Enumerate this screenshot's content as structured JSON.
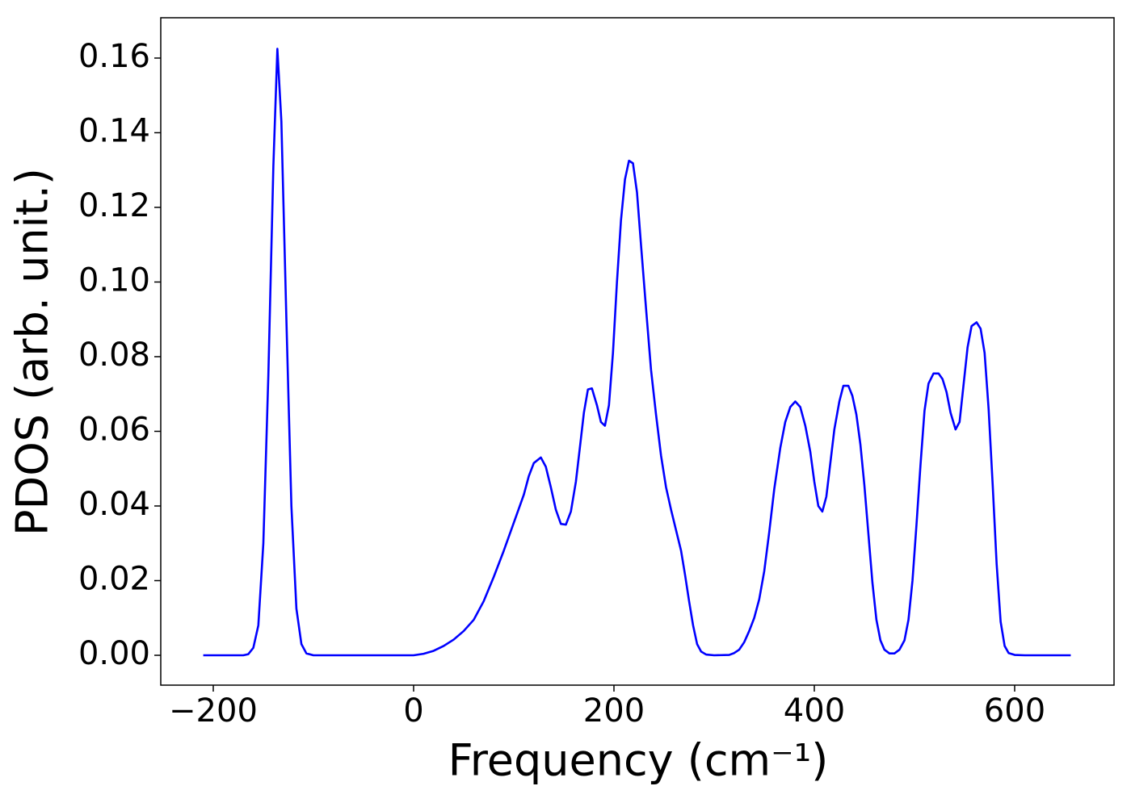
{
  "chart_data": {
    "type": "line",
    "xlabel": "Frequency (cm⁻¹)",
    "ylabel": "PDOS (arb. unit.)",
    "x": [
      -210,
      -170,
      -165,
      -160,
      -155,
      -150,
      -145,
      -140,
      -136,
      -132,
      -127,
      -122,
      -117,
      -112,
      -107,
      -100,
      0,
      10,
      20,
      30,
      40,
      50,
      60,
      70,
      80,
      90,
      100,
      110,
      115,
      120,
      127,
      132,
      137,
      142,
      147,
      152,
      157,
      162,
      167,
      170,
      174,
      178,
      183,
      187,
      191,
      195,
      199,
      203,
      207,
      211,
      215,
      219,
      223,
      227,
      232,
      237,
      242,
      247,
      252,
      257,
      262,
      267,
      271,
      275,
      279,
      283,
      287,
      292,
      300,
      315,
      320,
      325,
      330,
      335,
      340,
      345,
      350,
      355,
      360,
      366,
      371,
      376,
      381,
      386,
      391,
      396,
      400,
      404,
      408,
      412,
      416,
      420,
      425,
      429,
      434,
      438,
      442,
      446,
      450,
      454,
      458,
      462,
      466,
      470,
      475,
      480,
      485,
      490,
      494,
      498,
      502,
      506,
      510,
      514,
      519,
      524,
      528,
      532,
      536,
      541,
      545,
      549,
      553,
      557,
      562,
      566,
      570,
      574,
      578,
      582,
      586,
      590,
      594,
      600,
      610,
      656
    ],
    "series": [
      {
        "color": "#0000ff",
        "values": [
          0,
          0,
          0.0003,
          0.002,
          0.008,
          0.03,
          0.075,
          0.131,
          0.1625,
          0.143,
          0.09,
          0.04,
          0.0125,
          0.003,
          0.0005,
          0,
          0,
          0.0004,
          0.0012,
          0.0025,
          0.0042,
          0.0065,
          0.0095,
          0.0145,
          0.021,
          0.028,
          0.0355,
          0.043,
          0.048,
          0.0515,
          0.053,
          0.0505,
          0.045,
          0.039,
          0.0352,
          0.035,
          0.0385,
          0.0465,
          0.058,
          0.065,
          0.0712,
          0.0715,
          0.067,
          0.0625,
          0.0615,
          0.067,
          0.081,
          0.1,
          0.1165,
          0.1275,
          0.1325,
          0.1318,
          0.124,
          0.11,
          0.093,
          0.0765,
          0.0645,
          0.0535,
          0.045,
          0.039,
          0.0335,
          0.028,
          0.0215,
          0.0145,
          0.008,
          0.003,
          0.001,
          0.0002,
          0,
          0.0001,
          0.0006,
          0.0015,
          0.0035,
          0.0065,
          0.01,
          0.015,
          0.0225,
          0.033,
          0.0445,
          0.0555,
          0.0625,
          0.0665,
          0.068,
          0.0665,
          0.0615,
          0.0545,
          0.0465,
          0.04,
          0.0385,
          0.0425,
          0.0515,
          0.0605,
          0.068,
          0.0722,
          0.0722,
          0.0695,
          0.0645,
          0.0565,
          0.0455,
          0.0325,
          0.0195,
          0.0095,
          0.004,
          0.0015,
          0.0005,
          0.0005,
          0.0015,
          0.004,
          0.0095,
          0.02,
          0.035,
          0.051,
          0.0655,
          0.0728,
          0.0755,
          0.0755,
          0.074,
          0.0705,
          0.065,
          0.0605,
          0.0625,
          0.0725,
          0.0825,
          0.0882,
          0.0892,
          0.0875,
          0.081,
          0.066,
          0.046,
          0.0245,
          0.009,
          0.0025,
          0.0006,
          0.0001,
          0,
          0
        ]
      }
    ],
    "xlim": [
      -252.4,
      699.2
    ],
    "ylim": [
      -0.008,
      0.1708
    ],
    "xticks": [
      {
        "value": -200,
        "label": "−200"
      },
      0,
      200,
      400,
      600
    ],
    "yticks": [
      {
        "value": 0,
        "label": "0.00"
      },
      {
        "value": 0.02,
        "label": "0.02"
      },
      {
        "value": 0.04,
        "label": "0.04"
      },
      {
        "value": 0.06,
        "label": "0.06"
      },
      {
        "value": 0.08,
        "label": "0.08"
      },
      {
        "value": 0.1,
        "label": "0.10"
      },
      {
        "value": 0.12,
        "label": "0.12"
      },
      {
        "value": 0.14,
        "label": "0.14"
      },
      {
        "value": 0.16,
        "label": "0.16"
      }
    ],
    "grid": false
  }
}
